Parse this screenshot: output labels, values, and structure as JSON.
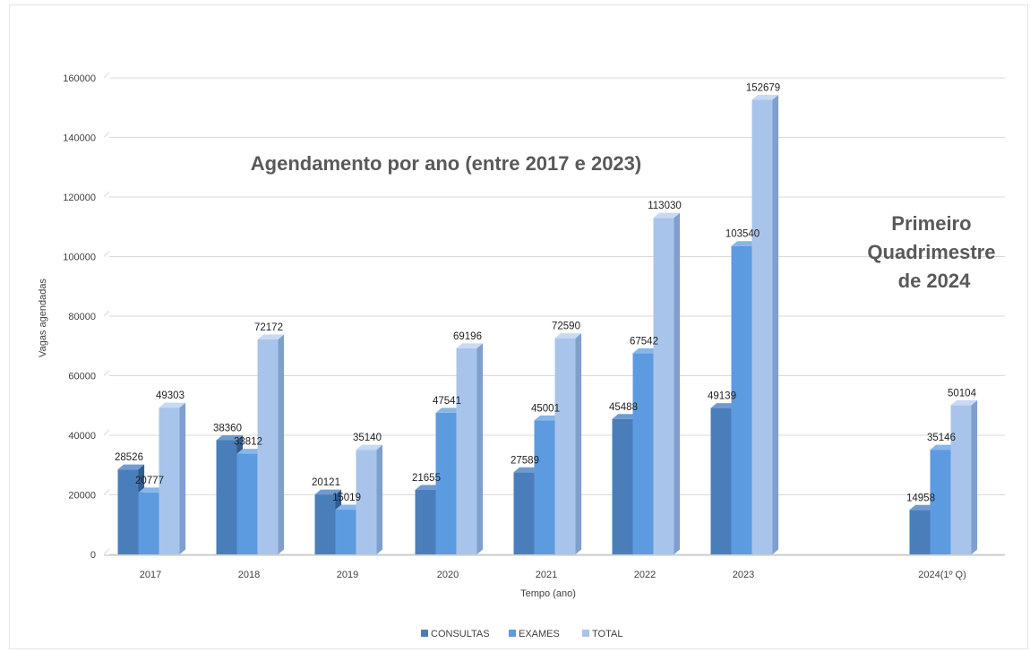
{
  "chart_data": {
    "type": "bar",
    "categories": [
      "2017",
      "2018",
      "2019",
      "2020",
      "2021",
      "2022",
      "2023",
      "2024(1º Q)"
    ],
    "series": [
      {
        "name": "CONSULTAS",
        "values": [
          28526,
          38360,
          20121,
          21655,
          27589,
          45488,
          49139,
          14958
        ]
      },
      {
        "name": "EXAMES",
        "values": [
          20777,
          33812,
          15019,
          47541,
          45001,
          67542,
          103540,
          35146
        ]
      },
      {
        "name": "TOTAL",
        "values": [
          49303,
          72172,
          35140,
          69196,
          72590,
          113030,
          152679,
          50104
        ]
      }
    ],
    "xlabel": "Tempo (ano)",
    "ylabel": "Vagas agendadas",
    "ylim": [
      0,
      160000
    ],
    "yticks": [
      0,
      20000,
      40000,
      60000,
      80000,
      100000,
      120000,
      140000,
      160000
    ],
    "grid": true,
    "legend_position": "bottom-center",
    "style": "3d-clustered-column",
    "colors": {
      "CONSULTAS": "#4a7ebb",
      "EXAMES": "#5d9be0",
      "TOTAL": "#a9c4eb"
    },
    "annotations": {
      "main": "Agendamento por ano (entre 2017 e 2023)",
      "side": [
        "Primeiro",
        "Quadrimestre",
        "de 2024"
      ]
    }
  }
}
